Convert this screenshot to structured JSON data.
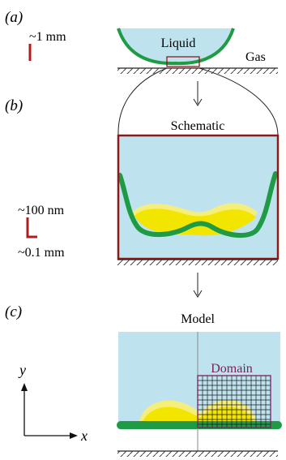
{
  "panels": {
    "a": {
      "label": "(a)",
      "scale_label": "~1 mm",
      "liquid_label": "Liquid",
      "gas_label": "Gas"
    },
    "b": {
      "label": "(b)",
      "title": "Schematic",
      "scale_vertical": "~100 nm",
      "scale_horizontal": "~0.1 mm"
    },
    "c": {
      "label": "(c)",
      "title": "Model",
      "domain_label": "Domain",
      "axis_y": "y",
      "axis_x": "x"
    }
  },
  "colors": {
    "liquid": "#bfe3ee",
    "film": "#1f9a45",
    "deposit": "#f2e600",
    "deposit_light": "#f6ee7a",
    "frame": "#8b1a1a",
    "scale_bar": "#b01c1c",
    "domain": "#7a1f5c",
    "grid": "#1a1a1a"
  }
}
